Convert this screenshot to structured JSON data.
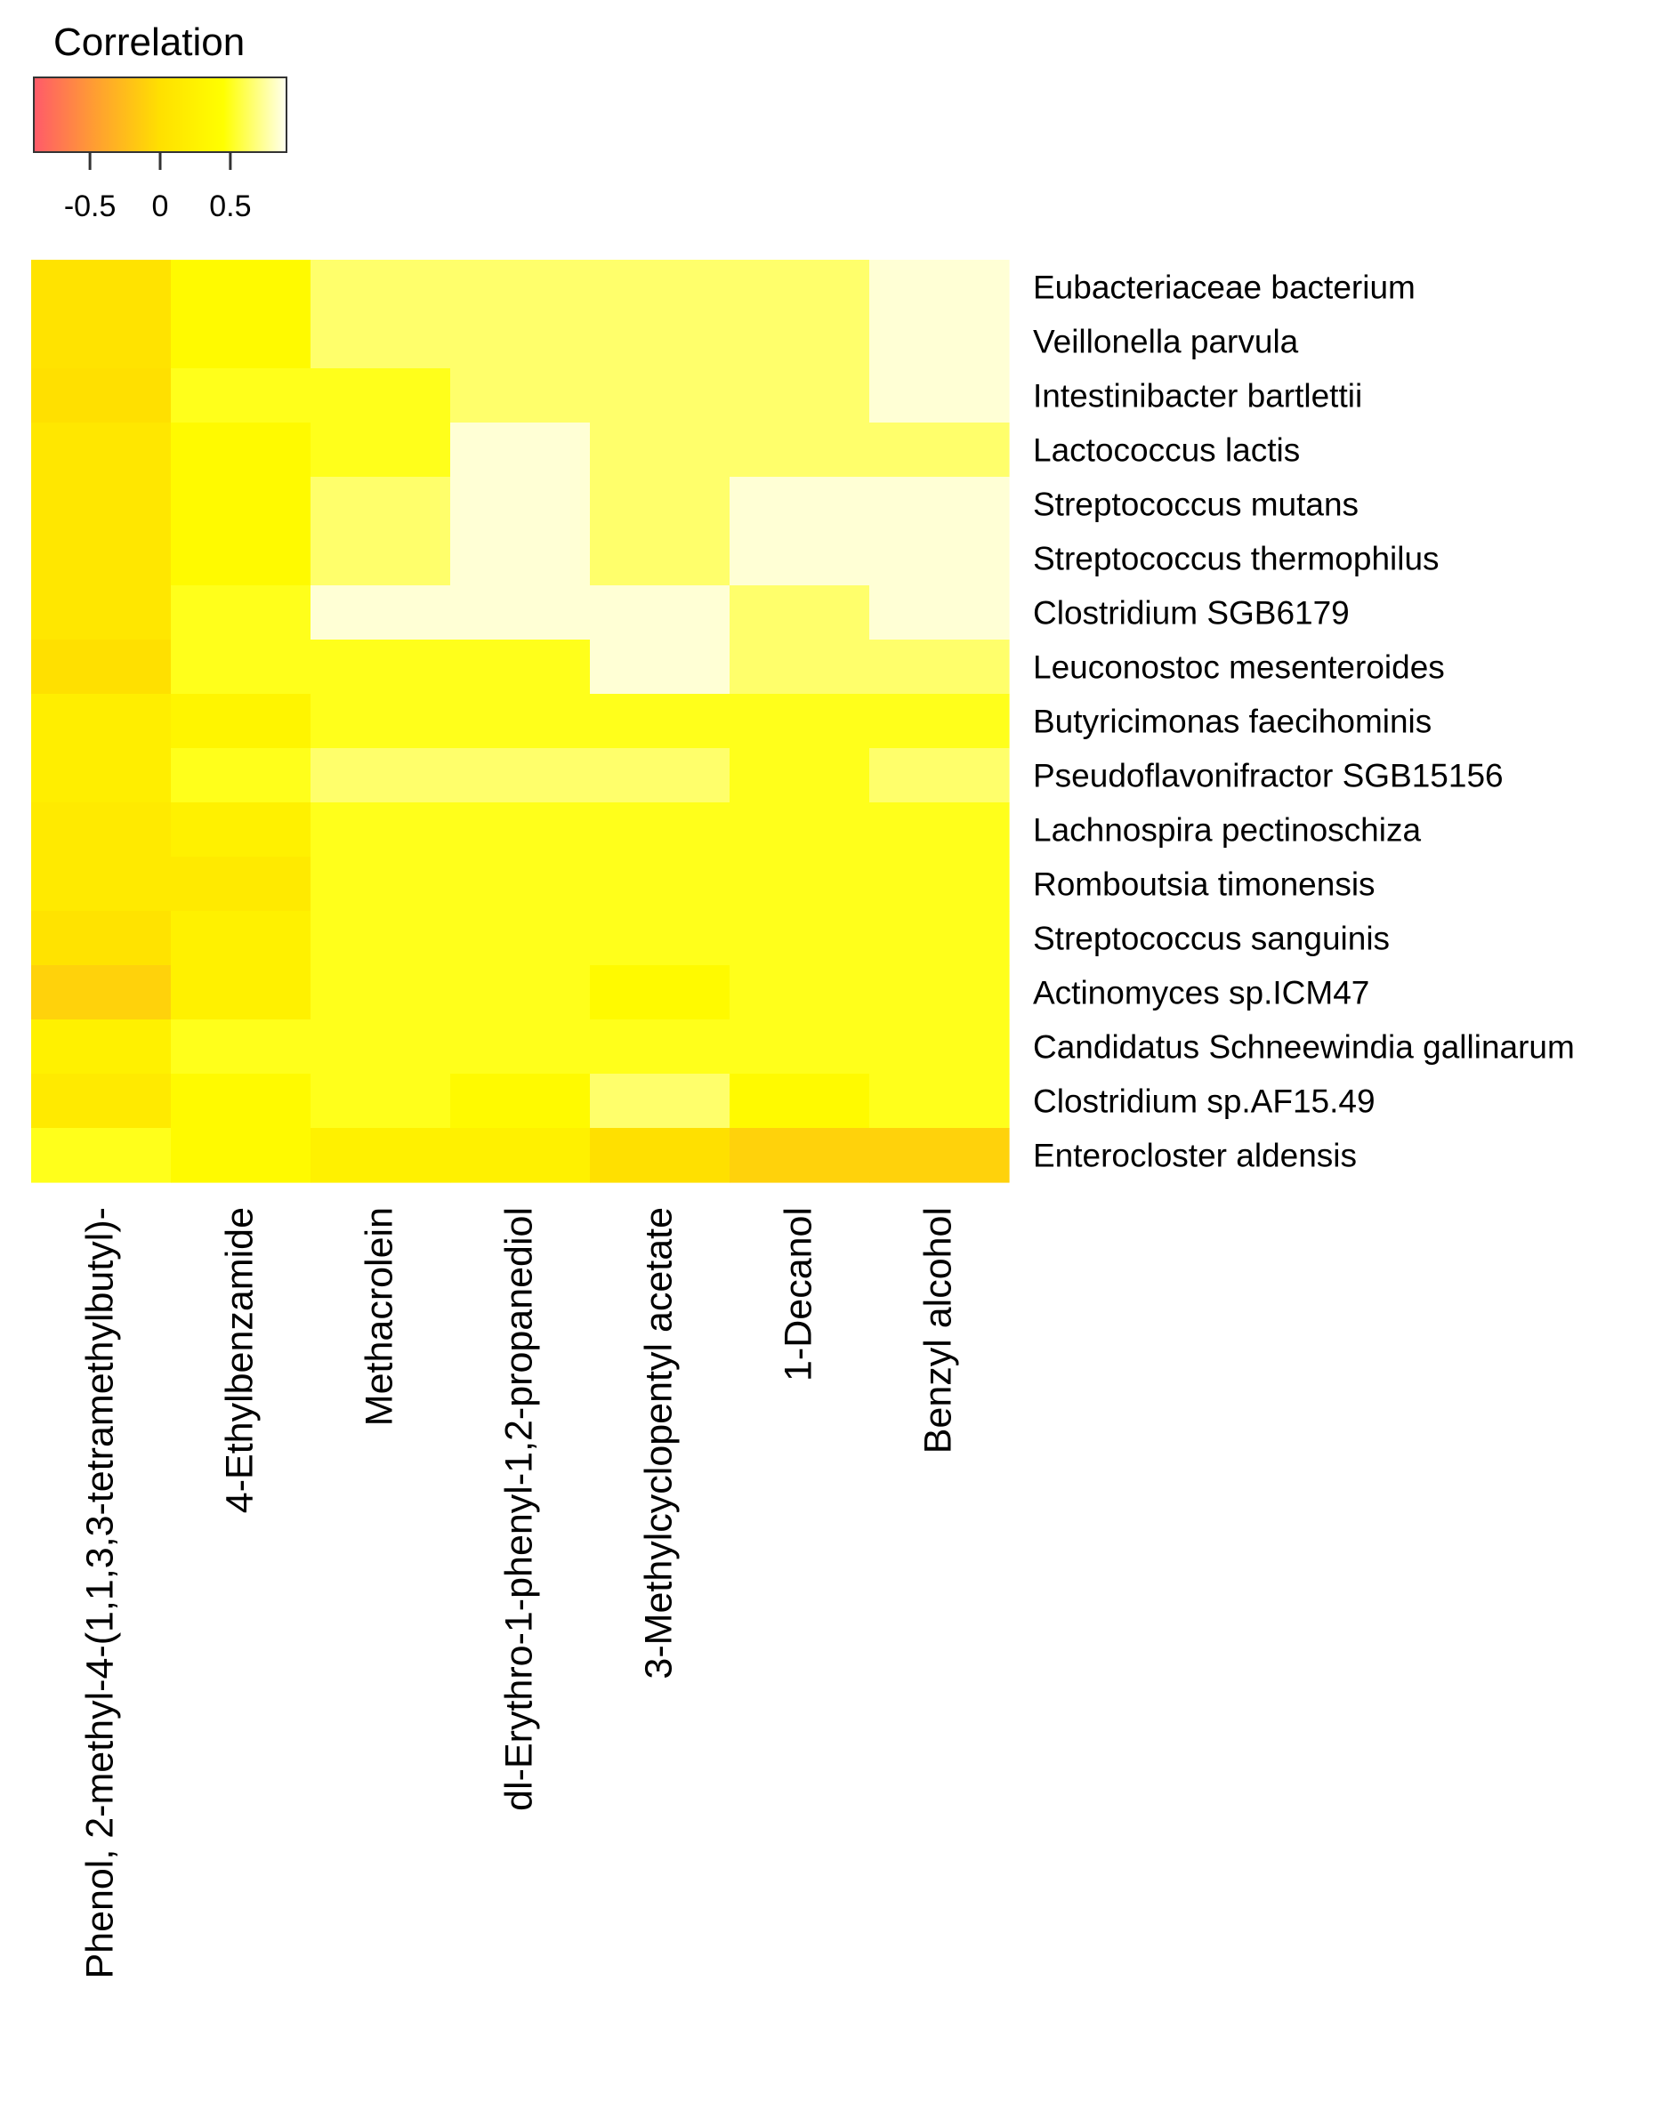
{
  "chart_data": {
    "type": "heatmap",
    "legend": {
      "title": "Correlation",
      "ticks": [
        -0.5,
        0,
        0.5
      ],
      "tick_labels": [
        "-0.5",
        "0",
        "0.5"
      ],
      "range": [
        -0.9,
        0.9
      ],
      "colors": [
        "#ff5a6a",
        "#ffa030",
        "#ffe000",
        "#ffff00",
        "#fffff0"
      ]
    },
    "columns": [
      "Phenol, 2-methyl-4-(1,1,3,3-tetramethylbutyl)-",
      "4-Ethylbenzamide",
      "Methacrolein",
      "dl-Erythro-1-phenyl-1,2-propanediol",
      "3-Methylcyclopentyl acetate",
      "1-Decanol",
      "Benzyl alcohol"
    ],
    "rows": [
      "Eubacteriaceae bacterium",
      "Veillonella parvula",
      "Intestinibacter bartlettii",
      "Lactococcus lactis",
      "Streptococcus mutans",
      "Streptococcus thermophilus",
      "Clostridium SGB6179",
      "Leuconostoc mesenteroides",
      "Butyricimonas faecihominis",
      "Pseudoflavonifractor SGB15156",
      "Lachnospira pectinoschiza",
      "Romboutsia timonensis",
      "Streptococcus sanguinis",
      "Actinomyces sp.ICM47",
      "Candidatus Schneewindia gallinarum",
      "Clostridium sp.AF15.49",
      "Enterocloster aldensis"
    ],
    "values": [
      [
        0.05,
        0.38,
        0.65,
        0.65,
        0.65,
        0.65,
        0.85
      ],
      [
        0.05,
        0.38,
        0.65,
        0.65,
        0.65,
        0.65,
        0.85
      ],
      [
        0.0,
        0.5,
        0.5,
        0.65,
        0.65,
        0.65,
        0.85
      ],
      [
        0.1,
        0.38,
        0.5,
        0.85,
        0.65,
        0.65,
        0.65
      ],
      [
        0.1,
        0.38,
        0.65,
        0.85,
        0.65,
        0.85,
        0.85
      ],
      [
        0.1,
        0.38,
        0.65,
        0.85,
        0.65,
        0.85,
        0.85
      ],
      [
        0.1,
        0.5,
        0.85,
        0.85,
        0.85,
        0.65,
        0.85
      ],
      [
        0.0,
        0.5,
        0.5,
        0.5,
        0.85,
        0.65,
        0.65
      ],
      [
        0.2,
        0.3,
        0.5,
        0.5,
        0.5,
        0.5,
        0.5
      ],
      [
        0.2,
        0.5,
        0.65,
        0.65,
        0.65,
        0.5,
        0.65
      ],
      [
        0.15,
        0.25,
        0.5,
        0.5,
        0.5,
        0.5,
        0.5
      ],
      [
        0.15,
        0.15,
        0.5,
        0.5,
        0.5,
        0.5,
        0.5
      ],
      [
        0.05,
        0.25,
        0.5,
        0.5,
        0.5,
        0.5,
        0.5
      ],
      [
        -0.1,
        0.25,
        0.5,
        0.5,
        0.38,
        0.5,
        0.5
      ],
      [
        0.25,
        0.5,
        0.5,
        0.5,
        0.5,
        0.5,
        0.5
      ],
      [
        0.15,
        0.38,
        0.5,
        0.38,
        0.65,
        0.38,
        0.5
      ],
      [
        0.5,
        0.38,
        0.25,
        0.25,
        0.0,
        -0.1,
        -0.1
      ]
    ],
    "grid": false,
    "legend_placement": "top-left"
  }
}
